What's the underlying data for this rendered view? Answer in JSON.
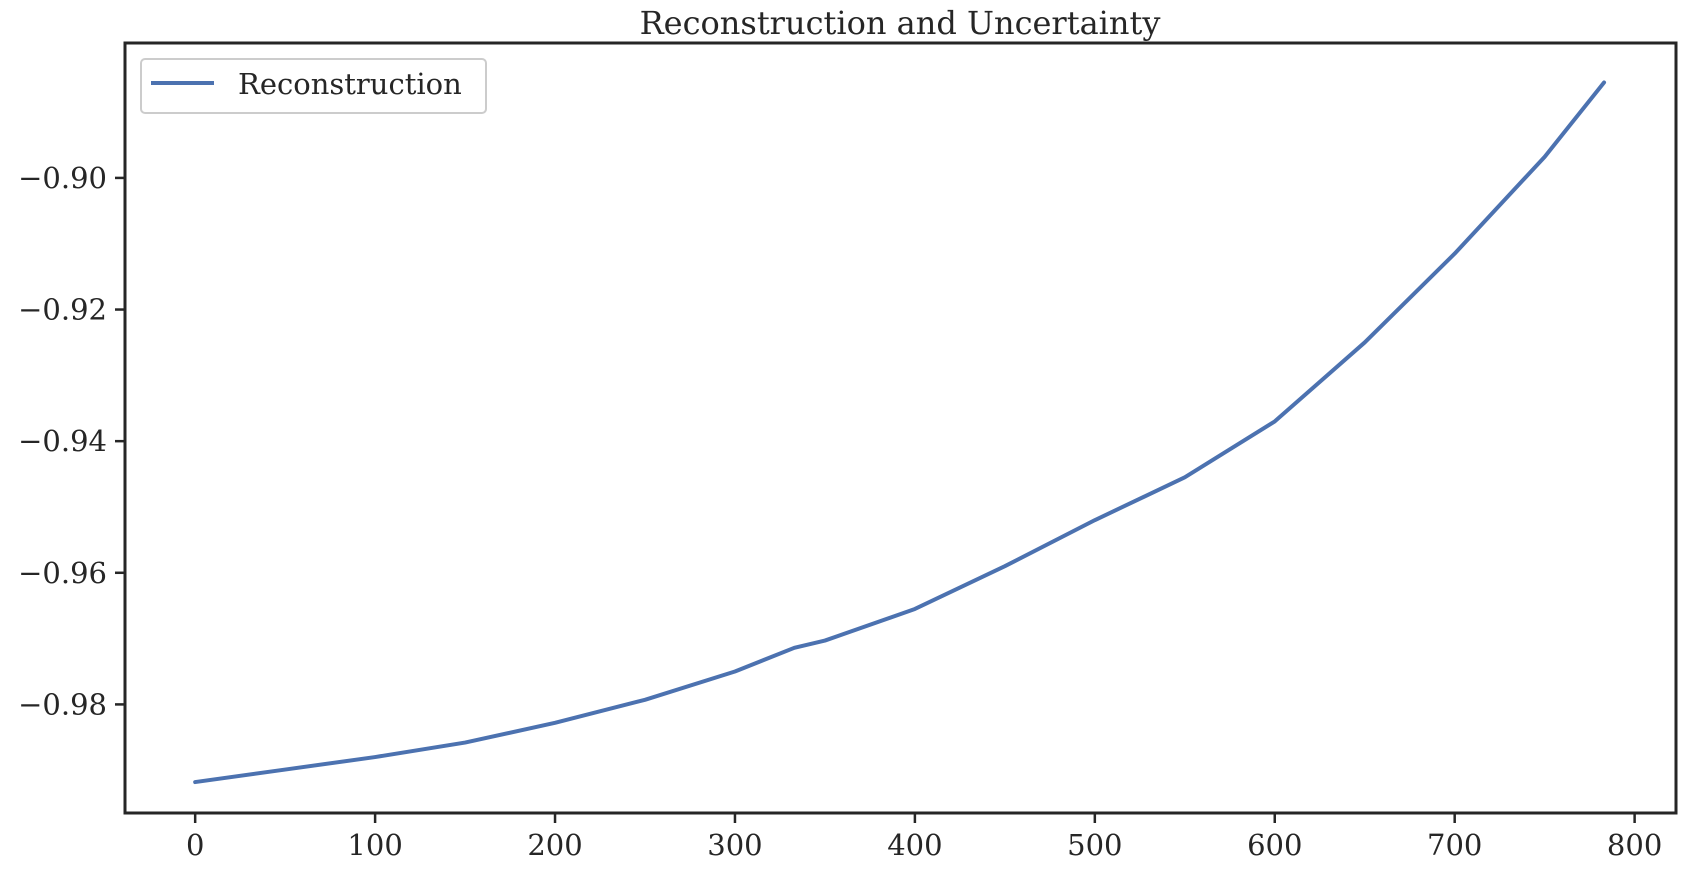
{
  "chart_data": {
    "type": "line",
    "title": "Reconstruction and Uncertainty",
    "xlabel": "",
    "ylabel": "",
    "xlim": [
      -39,
      823
    ],
    "ylim": [
      -0.9965,
      -0.8795
    ],
    "xticks": [
      0,
      100,
      200,
      300,
      400,
      500,
      600,
      700,
      800
    ],
    "xtick_labels": [
      "0",
      "100",
      "200",
      "300",
      "400",
      "500",
      "600",
      "700",
      "800"
    ],
    "yticks": [
      -0.98,
      -0.96,
      -0.94,
      -0.92,
      -0.9
    ],
    "ytick_labels": [
      "−0.98",
      "−0.96",
      "−0.94",
      "−0.92",
      "−0.90"
    ],
    "grid": false,
    "legend_position": "top-left",
    "series": [
      {
        "name": "Reconstruction",
        "color": "#4c72b0",
        "x": [
          0,
          50,
          100,
          150,
          200,
          250,
          300,
          333,
          350,
          400,
          450,
          500,
          550,
          600,
          650,
          700,
          750,
          783
        ],
        "y": [
          -0.9918,
          -0.9899,
          -0.988,
          -0.9858,
          -0.9828,
          -0.9793,
          -0.975,
          -0.9714,
          -0.9703,
          -0.9655,
          -0.959,
          -0.952,
          -0.9455,
          -0.937,
          -0.925,
          -0.9115,
          -0.8968,
          -0.8855
        ]
      }
    ]
  }
}
